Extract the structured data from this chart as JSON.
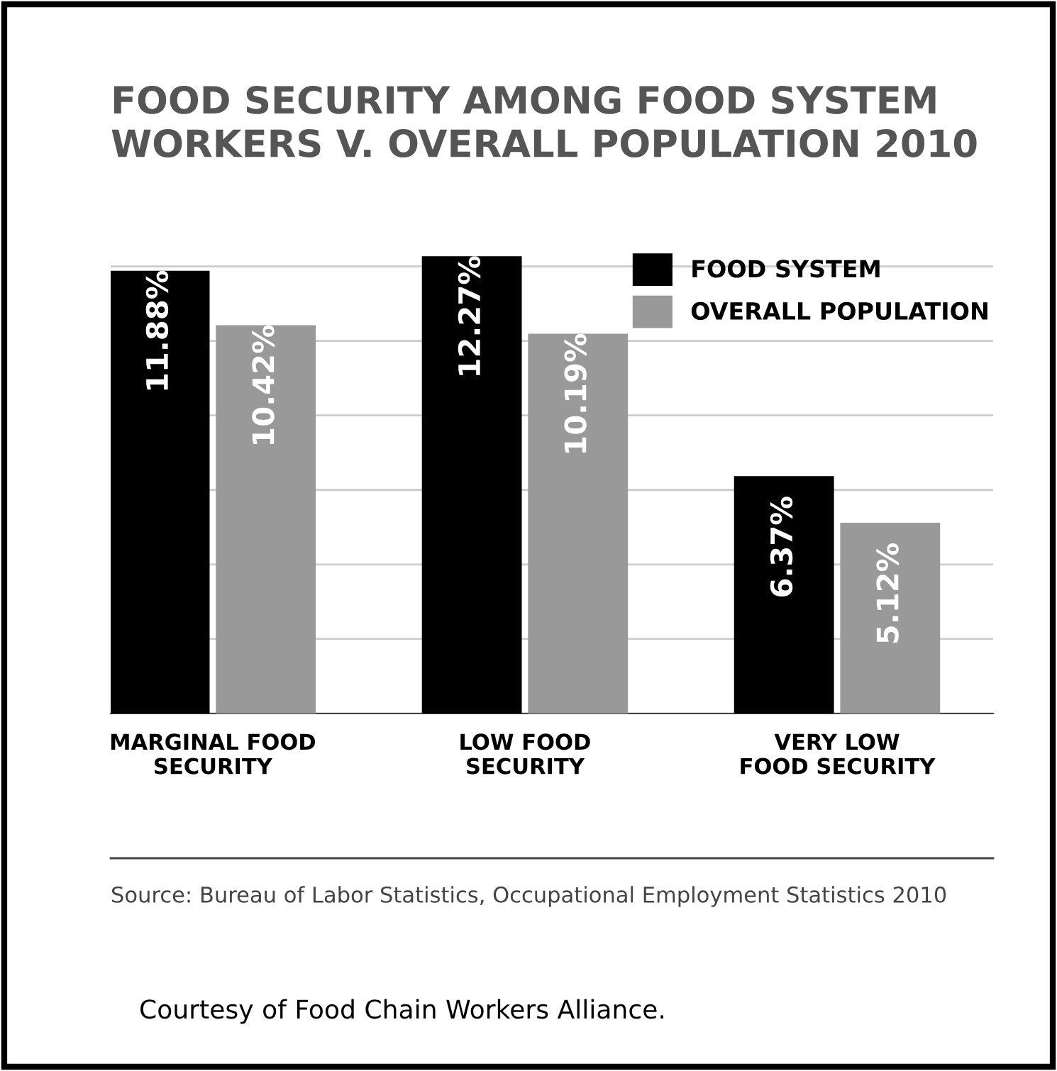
{
  "chart_data": {
    "type": "bar",
    "title": "FOOD SECURITY AMONG FOOD SYSTEM\nWORKERS V. OVERALL POPULATION 2010",
    "categories": [
      "MARGINAL FOOD\nSECURITY",
      "LOW FOOD\nSECURITY",
      "VERY LOW\nFOOD SECURITY"
    ],
    "series": [
      {
        "name": "FOOD SYSTEM",
        "color": "#000000",
        "values": [
          11.88,
          12.27,
          6.37
        ],
        "value_labels": [
          "11.88%",
          "12.27%",
          "6.37%"
        ]
      },
      {
        "name": "OVERALL POPULATION",
        "color": "#999999",
        "values": [
          10.42,
          10.19,
          5.12
        ],
        "value_labels": [
          "10.42%",
          "10.19%",
          "5.12%"
        ]
      }
    ],
    "grid": "y",
    "legend": "top right",
    "tick_labels": "x",
    "annotations": [
      "Source: Bureau of Labor Statistics, Occupational Employment Statistics 2010",
      "Courtesy of Food Chain Workers Alliance."
    ]
  }
}
